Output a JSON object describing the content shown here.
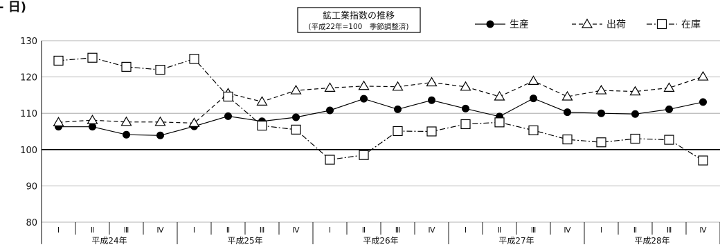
{
  "page": {
    "fragment_text": "- 日)"
  },
  "chart_data": {
    "type": "line",
    "title": "鉱工業指数の推移",
    "subtitle": "(平成22年=100　季節調整済)",
    "xlabel": "",
    "ylabel": "",
    "ylim": [
      80,
      130
    ],
    "yticks": [
      80,
      90,
      100,
      110,
      120,
      130
    ],
    "baseline": 100,
    "grid": true,
    "legend_position": "top-right",
    "categories": [
      "Ⅰ",
      "Ⅱ",
      "Ⅲ",
      "Ⅳ",
      "Ⅰ",
      "Ⅱ",
      "Ⅲ",
      "Ⅳ",
      "Ⅰ",
      "Ⅱ",
      "Ⅲ",
      "Ⅳ",
      "Ⅰ",
      "Ⅱ",
      "Ⅲ",
      "Ⅳ",
      "Ⅰ",
      "Ⅱ",
      "Ⅲ",
      "Ⅳ"
    ],
    "year_groups": [
      "平成24年",
      "平成25年",
      "平成26年",
      "平成27年",
      "平成28年"
    ],
    "series": [
      {
        "name": "生産",
        "marker": "circle",
        "line_style": "solid",
        "color": "#000000",
        "values": [
          106.3,
          106.3,
          104.1,
          103.9,
          106.4,
          109.2,
          107.8,
          108.9,
          110.8,
          114.0,
          111.1,
          113.6,
          111.3,
          109.1,
          114.1,
          110.3,
          110.0,
          109.8,
          111.1,
          113.1
        ]
      },
      {
        "name": "出荷",
        "marker": "triangle",
        "line_style": "dashed",
        "color": "#000000",
        "values": [
          107.5,
          108.1,
          107.6,
          107.6,
          107.3,
          115.5,
          113.2,
          116.3,
          117.0,
          117.5,
          117.3,
          118.5,
          117.3,
          114.6,
          118.9,
          114.6,
          116.3,
          116.0,
          117.0,
          120.1
        ]
      },
      {
        "name": "在庫",
        "marker": "square",
        "line_style": "dashdot",
        "color": "#000000",
        "values": [
          124.5,
          125.3,
          122.8,
          122.0,
          125.0,
          114.6,
          106.6,
          105.5,
          97.2,
          98.5,
          105.1,
          105.0,
          107.0,
          107.5,
          105.3,
          102.8,
          102.0,
          103.0,
          102.7,
          97.0
        ]
      }
    ]
  }
}
